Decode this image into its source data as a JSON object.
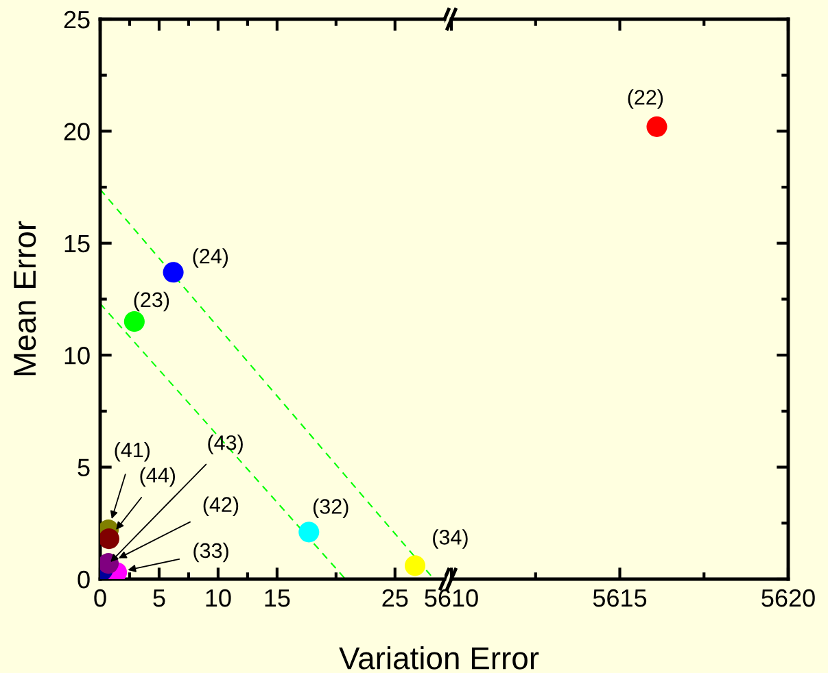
{
  "chart_data": [
    {
      "type": "scatter",
      "xlabel": "Variation Error",
      "ylabel": "Mean Error",
      "xlim": [
        0,
        29.2
      ],
      "ylim": [
        0,
        25
      ],
      "xticks": [
        0,
        5,
        10,
        15,
        25
      ],
      "yticks": [
        0,
        5,
        10,
        15,
        20,
        25
      ],
      "marker": "circle",
      "grid": false,
      "series": [
        {
          "type": "line",
          "color": "#00ff00",
          "line_style": "dashed",
          "marker": "none",
          "x": [
            0,
            28.3
          ],
          "values": [
            17.4,
            0
          ]
        },
        {
          "type": "line",
          "color": "#00ff00",
          "line_style": "dashed",
          "marker": "none",
          "x": [
            0,
            20.8
          ],
          "values": [
            12.3,
            0
          ]
        },
        {
          "name": "(24)",
          "color": "#0000ff",
          "x": [
            6.2
          ],
          "values": [
            13.7
          ]
        },
        {
          "name": "(23)",
          "color": "#00ff00",
          "x": [
            2.9
          ],
          "values": [
            11.5
          ]
        },
        {
          "name": "(32)",
          "color": "#00ffff",
          "x": [
            17.7
          ],
          "values": [
            2.1
          ]
        },
        {
          "name": "(34)",
          "color": "#ffff00",
          "x": [
            26.7
          ],
          "values": [
            0.6
          ]
        },
        {
          "name": "(33)",
          "color": "#ff00ff",
          "x": [
            1.4
          ],
          "values": [
            0.3
          ]
        },
        {
          "name": "(43)",
          "color": "#000099",
          "x": [
            0.2
          ],
          "values": [
            0.4
          ]
        },
        {
          "name": "(42)",
          "color": "#800080",
          "x": [
            0.7
          ],
          "values": [
            0.7
          ]
        },
        {
          "name": "(41)",
          "color": "#808000",
          "x": [
            0.7
          ],
          "values": [
            2.2
          ]
        },
        {
          "name": "(44)",
          "color": "#800000",
          "x": [
            0.75
          ],
          "values": [
            1.8
          ]
        }
      ]
    },
    {
      "type": "scatter",
      "xlim": [
        5610,
        5620
      ],
      "ylim": [
        0,
        25
      ],
      "xticks": [
        5610,
        5615,
        5620
      ],
      "yticks": [
        0,
        5,
        10,
        15,
        20,
        25
      ],
      "tick_labels": "x",
      "marker": "circle",
      "grid": false,
      "series": [
        {
          "name": "(22)",
          "color": "#ff0000",
          "x": [
            5616.1
          ],
          "values": [
            20.2
          ]
        }
      ]
    }
  ]
}
